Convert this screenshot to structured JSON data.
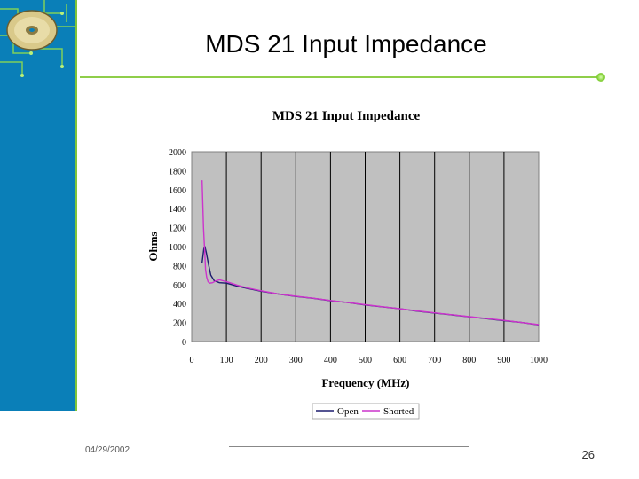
{
  "slide": {
    "title": "MDS 21 Input Impedance",
    "date": "04/29/2002",
    "page_number": "26"
  },
  "colors": {
    "sidebar": "#0a7fb8",
    "accent_green": "#8fce4a",
    "plot_background": "#c0c0c0",
    "open_series": "#1c1c6e",
    "shorted_series": "#cc33cc"
  },
  "icons": [
    "cd-disc-icon",
    "circuit-board-decoration"
  ],
  "chart_data": {
    "type": "line",
    "title": "MDS 21 Input Impedance",
    "xlabel": "Frequency (MHz)",
    "ylabel": "Ohms",
    "xlim": [
      0,
      1000
    ],
    "ylim": [
      0,
      2000
    ],
    "xticks": [
      "0",
      "100",
      "200",
      "300",
      "400",
      "500",
      "600",
      "700",
      "800",
      "900",
      "1000"
    ],
    "yticks": [
      "0",
      "200",
      "400",
      "600",
      "800",
      "1000",
      "1200",
      "1400",
      "1600",
      "1800",
      "2000"
    ],
    "grid": "vertical",
    "legend_position": "bottom",
    "series": [
      {
        "name": "Open",
        "color": "#1c1c6e",
        "x": [
          30,
          35,
          38,
          42,
          48,
          55,
          65,
          80,
          100,
          130,
          160,
          200,
          250,
          300,
          350,
          400,
          450,
          500,
          550,
          600,
          650,
          700,
          750,
          800,
          850,
          900,
          950,
          1000
        ],
        "y": [
          830,
          980,
          1000,
          940,
          820,
          700,
          640,
          620,
          615,
          585,
          560,
          530,
          500,
          475,
          455,
          430,
          410,
          385,
          365,
          345,
          320,
          300,
          280,
          260,
          240,
          220,
          200,
          175
        ]
      },
      {
        "name": "Shorted",
        "color": "#cc33cc",
        "x": [
          30,
          32,
          34,
          36,
          38,
          40,
          43,
          47,
          52,
          60,
          70,
          80,
          90,
          100,
          110,
          130,
          160,
          200,
          250,
          300,
          350,
          400,
          450,
          500,
          550,
          600,
          650,
          700,
          750,
          800,
          850,
          900,
          950,
          1000
        ],
        "y": [
          1700,
          1450,
          1200,
          1050,
          900,
          760,
          680,
          630,
          615,
          620,
          640,
          650,
          640,
          630,
          620,
          595,
          565,
          535,
          500,
          478,
          456,
          432,
          410,
          388,
          366,
          345,
          322,
          302,
          282,
          262,
          242,
          222,
          200,
          178
        ]
      }
    ]
  }
}
